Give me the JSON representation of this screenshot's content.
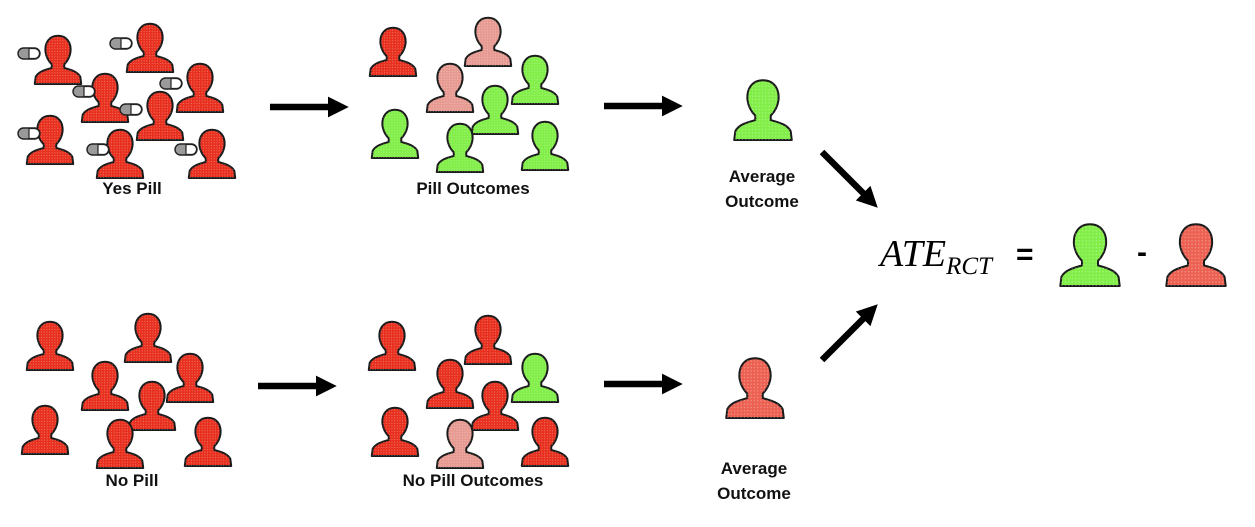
{
  "labels": {
    "yes_pill": "Yes Pill",
    "pill_outcomes": "Pill Outcomes",
    "average_outcome_line1": "Average",
    "average_outcome_line2": "Outcome",
    "no_pill": "No Pill",
    "no_pill_outcomes": "No Pill Outcomes"
  },
  "formula": {
    "main": "ATE",
    "subscript": "RCT",
    "equals": "=",
    "minus": "-"
  },
  "colors": {
    "untreated": "#e8301f",
    "partial": "#e79a92",
    "improved": "#82ee48",
    "average_bad": "#ec6152",
    "arrow": "#000000",
    "pill_body": "#9a9a9a"
  },
  "groups": {
    "yes_pill_people": [
      "red",
      "red",
      "red",
      "red",
      "red",
      "red",
      "red",
      "red",
      "red"
    ],
    "pill_outcome_people": [
      "red",
      "pink",
      "pink",
      "green",
      "green",
      "green",
      "green",
      "green",
      "green"
    ],
    "no_pill_people": [
      "red",
      "red",
      "red",
      "red",
      "red",
      "red",
      "red",
      "red",
      "red"
    ],
    "no_pill_outcome_people": [
      "red",
      "red",
      "red",
      "green",
      "red",
      "red",
      "pink",
      "red",
      "pink"
    ]
  },
  "icons": {
    "person": "person-silhouette-icon",
    "pill": "capsule-pill-icon",
    "arrow": "arrow-icon"
  }
}
